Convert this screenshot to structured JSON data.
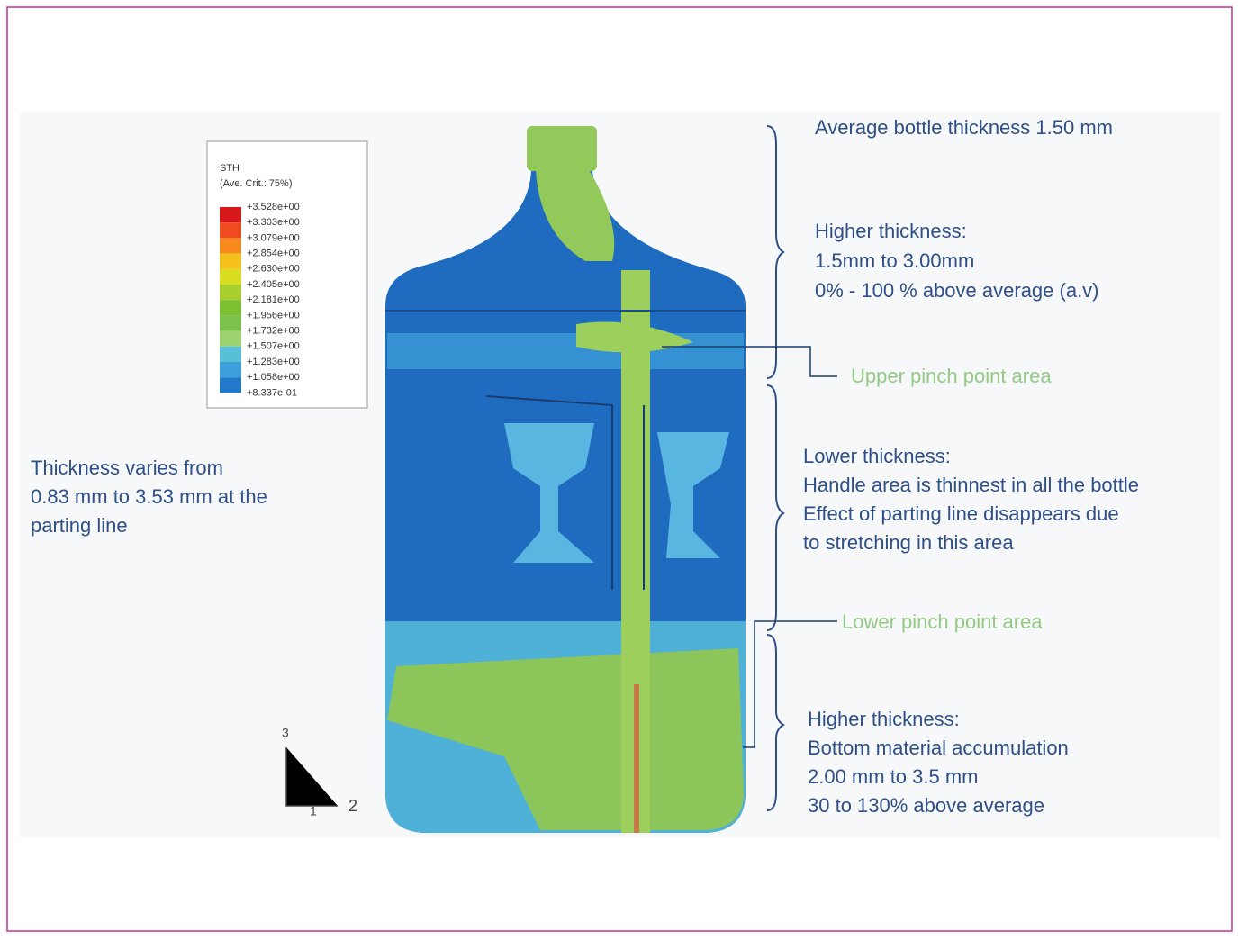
{
  "legend": {
    "title": "STH",
    "subtitle": "(Ave. Crit.: 75%)",
    "labels": [
      "+3.528e+00",
      "+3.303e+00",
      "+3.079e+00",
      "+2.854e+00",
      "+2.630e+00",
      "+2.405e+00",
      "+2.181e+00",
      "+1.956e+00",
      "+1.732e+00",
      "+1.507e+00",
      "+1.283e+00",
      "+1.058e+00",
      "+8.337e-01"
    ]
  },
  "annotations": {
    "average": "Average bottle thickness 1.50 mm",
    "upper_zone": [
      "Higher thickness:",
      "1.5mm to 3.00mm",
      "0% - 100 % above average (a.v)"
    ],
    "upper_pinch": "Upper pinch point area",
    "middle_zone": [
      "Lower thickness:",
      "Handle area is thinnest in all the bottle",
      "Effect of parting line disappears due",
      "to stretching in this area"
    ],
    "lower_pinch": "Lower pinch point area",
    "bottom_zone": [
      "Higher thickness:",
      "Bottom material accumulation",
      "2.00 mm to 3.5 mm",
      "30 to 130% above average"
    ],
    "left_note": [
      "Thickness varies from",
      "0.83 mm to 3.53 mm at the",
      "parting line"
    ]
  },
  "axes": {
    "vertical": "3",
    "out": "1",
    "horizontal": "2"
  }
}
